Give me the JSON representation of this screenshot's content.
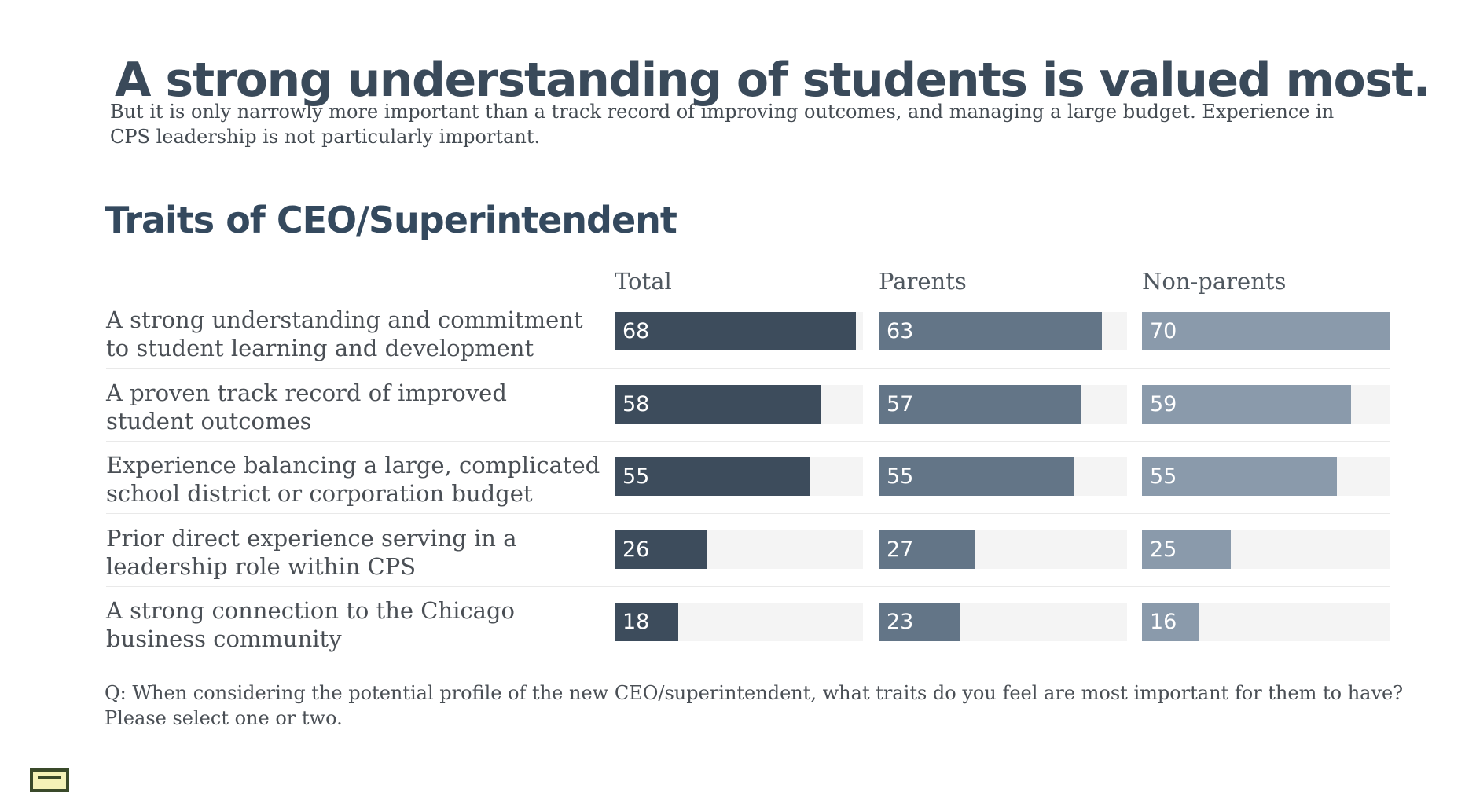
{
  "headline": "A strong understanding of students is valued most.",
  "subhead": "But it is only narrowly more important than a track record of improving outcomes, and managing a large budget. Experience in CPS leadership is not particularly important.",
  "footnote": "Q: When considering the potential profile of the new CEO/superintendent, what traits do you feel are most important for them to have? Please select one or two.",
  "chart_data": {
    "type": "bar",
    "title": "Traits of CEO/Superintendent",
    "categories": [
      "A strong understanding and commitment to student learning and development",
      "A proven track record of improved student outcomes",
      "Experience balancing a large, complicated school district or corporation budget",
      "Prior direct experience serving in a leadership role within CPS",
      "A strong connection to the Chicago business community"
    ],
    "series": [
      {
        "name": "Total",
        "values": [
          68,
          58,
          55,
          26,
          18
        ],
        "color": "#3d4c5c"
      },
      {
        "name": "Parents",
        "values": [
          63,
          57,
          55,
          27,
          23
        ],
        "color": "#637587"
      },
      {
        "name": "Non-parents",
        "values": [
          70,
          59,
          55,
          25,
          16
        ],
        "color": "#8a9aab"
      }
    ],
    "xlim": [
      0,
      70
    ],
    "grid": false,
    "legend": "column headers"
  }
}
